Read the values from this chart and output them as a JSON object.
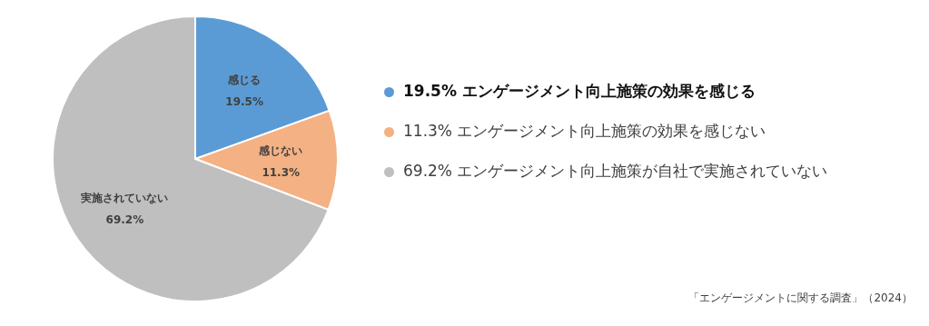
{
  "chart_data": {
    "type": "pie",
    "categories": [
      "エンゲージメント向上施策の効果を感じる",
      "エンゲージメント向上施策の効果を感じない",
      "エンゲージメント向上施策が自社で実施されていない"
    ],
    "values": [
      19.5,
      11.3,
      69.2
    ],
    "colors": [
      "#5b9bd5",
      "#f4b183",
      "#bfbfbf"
    ],
    "value_labels": [
      "19.5%",
      "11.3%",
      "69.2%"
    ],
    "legend": "right",
    "annotations": [
      "感じる",
      "感じない",
      "実施されていない",
      "「エンゲージメントに関する調査」（2024）"
    ]
  }
}
